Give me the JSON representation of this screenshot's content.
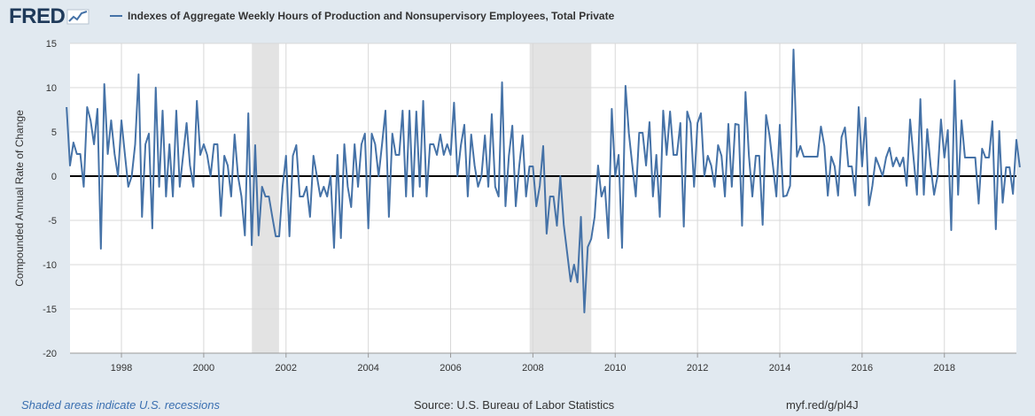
{
  "header": {
    "logo_text": "FRED",
    "logo_icon": "fred-chart-icon",
    "series_title": "Indexes of Aggregate Weekly Hours of Production and Nonsupervisory Employees, Total Private"
  },
  "footer": {
    "recession_note": "Shaded areas indicate U.S. recessions",
    "source": "Source: U.S. Bureau of Labor Statistics",
    "short_url": "myf.red/g/pl4J"
  },
  "colors": {
    "line": "#4572a7",
    "recession_band": "#e3e3e3",
    "background": "#e1e9f0",
    "plot_background": "#ffffff",
    "zero_line": "#000000"
  },
  "chart_data": {
    "type": "line",
    "title": "",
    "xlabel": "",
    "ylabel": "Compounded Annual Rate of Change",
    "ylim": [
      -20,
      15
    ],
    "xlim": [
      1996.75,
      2019.75
    ],
    "yticks": [
      15,
      10,
      5,
      0,
      -5,
      -10,
      -15,
      -20
    ],
    "xticks": [
      "1998",
      "2000",
      "2002",
      "2004",
      "2006",
      "2008",
      "2010",
      "2012",
      "2014",
      "2016",
      "2018"
    ],
    "grid": true,
    "legend_position": "top-left",
    "zero_line": true,
    "recessions": [
      [
        2001.17,
        2001.83
      ],
      [
        2007.92,
        2009.42
      ]
    ],
    "series": [
      {
        "name": "Indexes of Aggregate Weekly Hours of Production and Nonsupervisory Employees, Total Private",
        "start": "1996-09",
        "frequency": "monthly",
        "values": [
          7.8,
          1.2,
          3.8,
          2.5,
          2.5,
          -1.2,
          7.8,
          6.3,
          3.6,
          7.6,
          -8.2,
          10.4,
          2.5,
          6.3,
          2.5,
          0,
          6.3,
          2.5,
          -1.2,
          0,
          3.6,
          11.5,
          -4.6,
          3.6,
          4.8,
          -5.9,
          10.0,
          -1.2,
          7.4,
          -2.3,
          3.6,
          -2.3,
          7.4,
          -1.2,
          2.4,
          6.0,
          1.2,
          -1.2,
          8.5,
          2.4,
          3.6,
          2.4,
          0,
          3.6,
          3.6,
          -4.5,
          2.3,
          1.2,
          -2.3,
          4.7,
          0,
          -2.3,
          -6.7,
          7.1,
          -7.8,
          3.5,
          -6.7,
          -1.2,
          -2.3,
          -2.3,
          -4.6,
          -6.8,
          -6.8,
          -1.2,
          2.3,
          -6.8,
          2.3,
          3.5,
          -2.3,
          -2.3,
          -1.2,
          -4.6,
          2.3,
          0,
          -2.3,
          -1.2,
          -2.3,
          0,
          -8.1,
          2.4,
          -7.0,
          3.6,
          -1.2,
          -3.5,
          3.6,
          -1.2,
          3.6,
          4.8,
          -5.9,
          4.8,
          3.6,
          0,
          3.6,
          7.4,
          -4.6,
          4.8,
          2.4,
          2.4,
          7.4,
          -2.3,
          7.4,
          -2.3,
          7.3,
          -1.2,
          8.5,
          -2.3,
          3.6,
          3.6,
          2.4,
          4.7,
          2.4,
          3.6,
          2.4,
          8.3,
          0,
          3.5,
          5.8,
          -2.3,
          4.7,
          1.2,
          -1.2,
          0,
          4.6,
          -1.2,
          7.0,
          -1.2,
          -2.3,
          10.6,
          -3.4,
          2.3,
          5.7,
          -3.4,
          1.1,
          4.6,
          -2.3,
          1.1,
          1.1,
          -3.4,
          -1.1,
          3.4,
          -6.5,
          -2.3,
          -2.3,
          -5.6,
          0,
          -5.5,
          -8.7,
          -11.9,
          -10.0,
          -12.0,
          -4.6,
          -15.4,
          -8.0,
          -7.1,
          -4.6,
          1.2,
          -2.3,
          -1.2,
          -7.0,
          7.6,
          0,
          2.4,
          -8.1,
          10.2,
          4.8,
          1.2,
          -2.3,
          4.9,
          4.9,
          1.2,
          6.1,
          -2.3,
          2.4,
          -4.6,
          7.4,
          2.4,
          7.3,
          2.4,
          2.4,
          6.0,
          -5.7,
          7.3,
          6.0,
          -1.2,
          6.0,
          7.1,
          0,
          2.3,
          1.2,
          -1.2,
          3.5,
          2.3,
          -2.3,
          5.9,
          -1.2,
          5.9,
          5.8,
          -5.6,
          9.5,
          2.3,
          -2.3,
          2.3,
          2.3,
          -5.5,
          6.9,
          4.6,
          1.2,
          -2.3,
          5.8,
          -2.3,
          -2.2,
          -1.1,
          14.3,
          2.2,
          3.4,
          2.2,
          2.2,
          2.2,
          2.2,
          2.2,
          5.6,
          3.4,
          -2.2,
          2.2,
          1.1,
          -2.2,
          4.4,
          5.5,
          1.1,
          1.1,
          -2.2,
          7.8,
          1.1,
          6.6,
          -3.3,
          -1.1,
          2.1,
          1.1,
          0,
          2.1,
          3.2,
          1.1,
          2.1,
          1.1,
          2.1,
          -1.1,
          6.4,
          2.1,
          -2.1,
          8.7,
          -2.1,
          5.3,
          1.1,
          -2.1,
          0,
          6.4,
          2.1,
          5.2,
          -6.1,
          10.8,
          -2.1,
          6.3,
          2.1,
          2.1,
          2.1,
          2.1,
          -3.1,
          3.1,
          2.1,
          2.1,
          6.2,
          -6.0,
          5.1,
          -3.0,
          1.0,
          1.0,
          -2.0,
          4.1,
          1.0
        ]
      }
    ]
  }
}
